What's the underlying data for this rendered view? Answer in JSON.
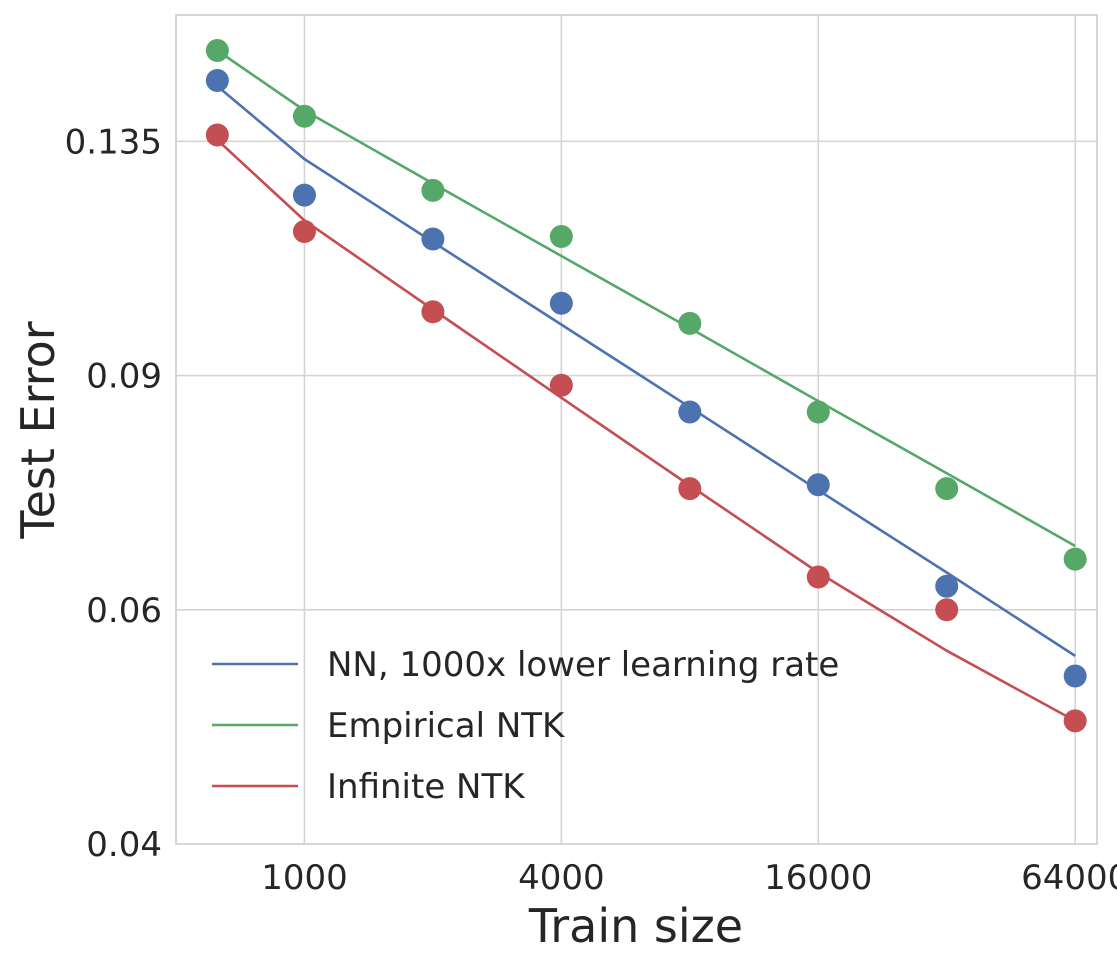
{
  "chart_data": {
    "type": "scatter",
    "xlabel": "Train size",
    "ylabel": "Test Error",
    "x_scale": "log2",
    "y_scale": "log",
    "xlim": [
      500,
      72000
    ],
    "ylim": [
      0.04,
      0.168
    ],
    "x_ticks": [
      1000,
      4000,
      16000,
      64000
    ],
    "x_tick_labels": [
      "1000",
      "4000",
      "16000",
      "64000"
    ],
    "y_ticks": [
      0.04,
      0.06,
      0.09,
      0.135
    ],
    "y_tick_labels": [
      "0.04",
      "0.06",
      "0.09",
      "0.135"
    ],
    "grid": true,
    "legend_position": "lower-left",
    "x": [
      625,
      1000,
      2000,
      4000,
      8000,
      16000,
      32000,
      64000
    ],
    "series": [
      {
        "name": "NN, 1000x lower learning rate",
        "color": "#4c72b0",
        "values": [
          0.15,
          0.123,
          0.114,
          0.102,
          0.0845,
          0.0745,
          0.0625,
          0.0535
        ],
        "fit": [
          0.1485,
          0.1309,
          0.1134,
          0.0983,
          0.0852,
          0.0738,
          0.064,
          0.0554
        ]
      },
      {
        "name": "Empirical NTK",
        "color": "#55a868",
        "values": [
          0.158,
          0.141,
          0.124,
          0.1145,
          0.0985,
          0.0845,
          0.074,
          0.0655
        ],
        "fit": [
          0.158,
          0.1424,
          0.1255,
          0.1107,
          0.0977,
          0.0861,
          0.076,
          0.067
        ]
      },
      {
        "name": "Infinite NTK",
        "color": "#c44e52",
        "values": [
          0.1365,
          0.1155,
          0.1005,
          0.0885,
          0.074,
          0.0635,
          0.06,
          0.0495
        ],
        "fit": [
          0.1353,
          0.1177,
          0.1009,
          0.0866,
          0.0744,
          0.064,
          0.0559,
          0.0495
        ]
      }
    ]
  }
}
